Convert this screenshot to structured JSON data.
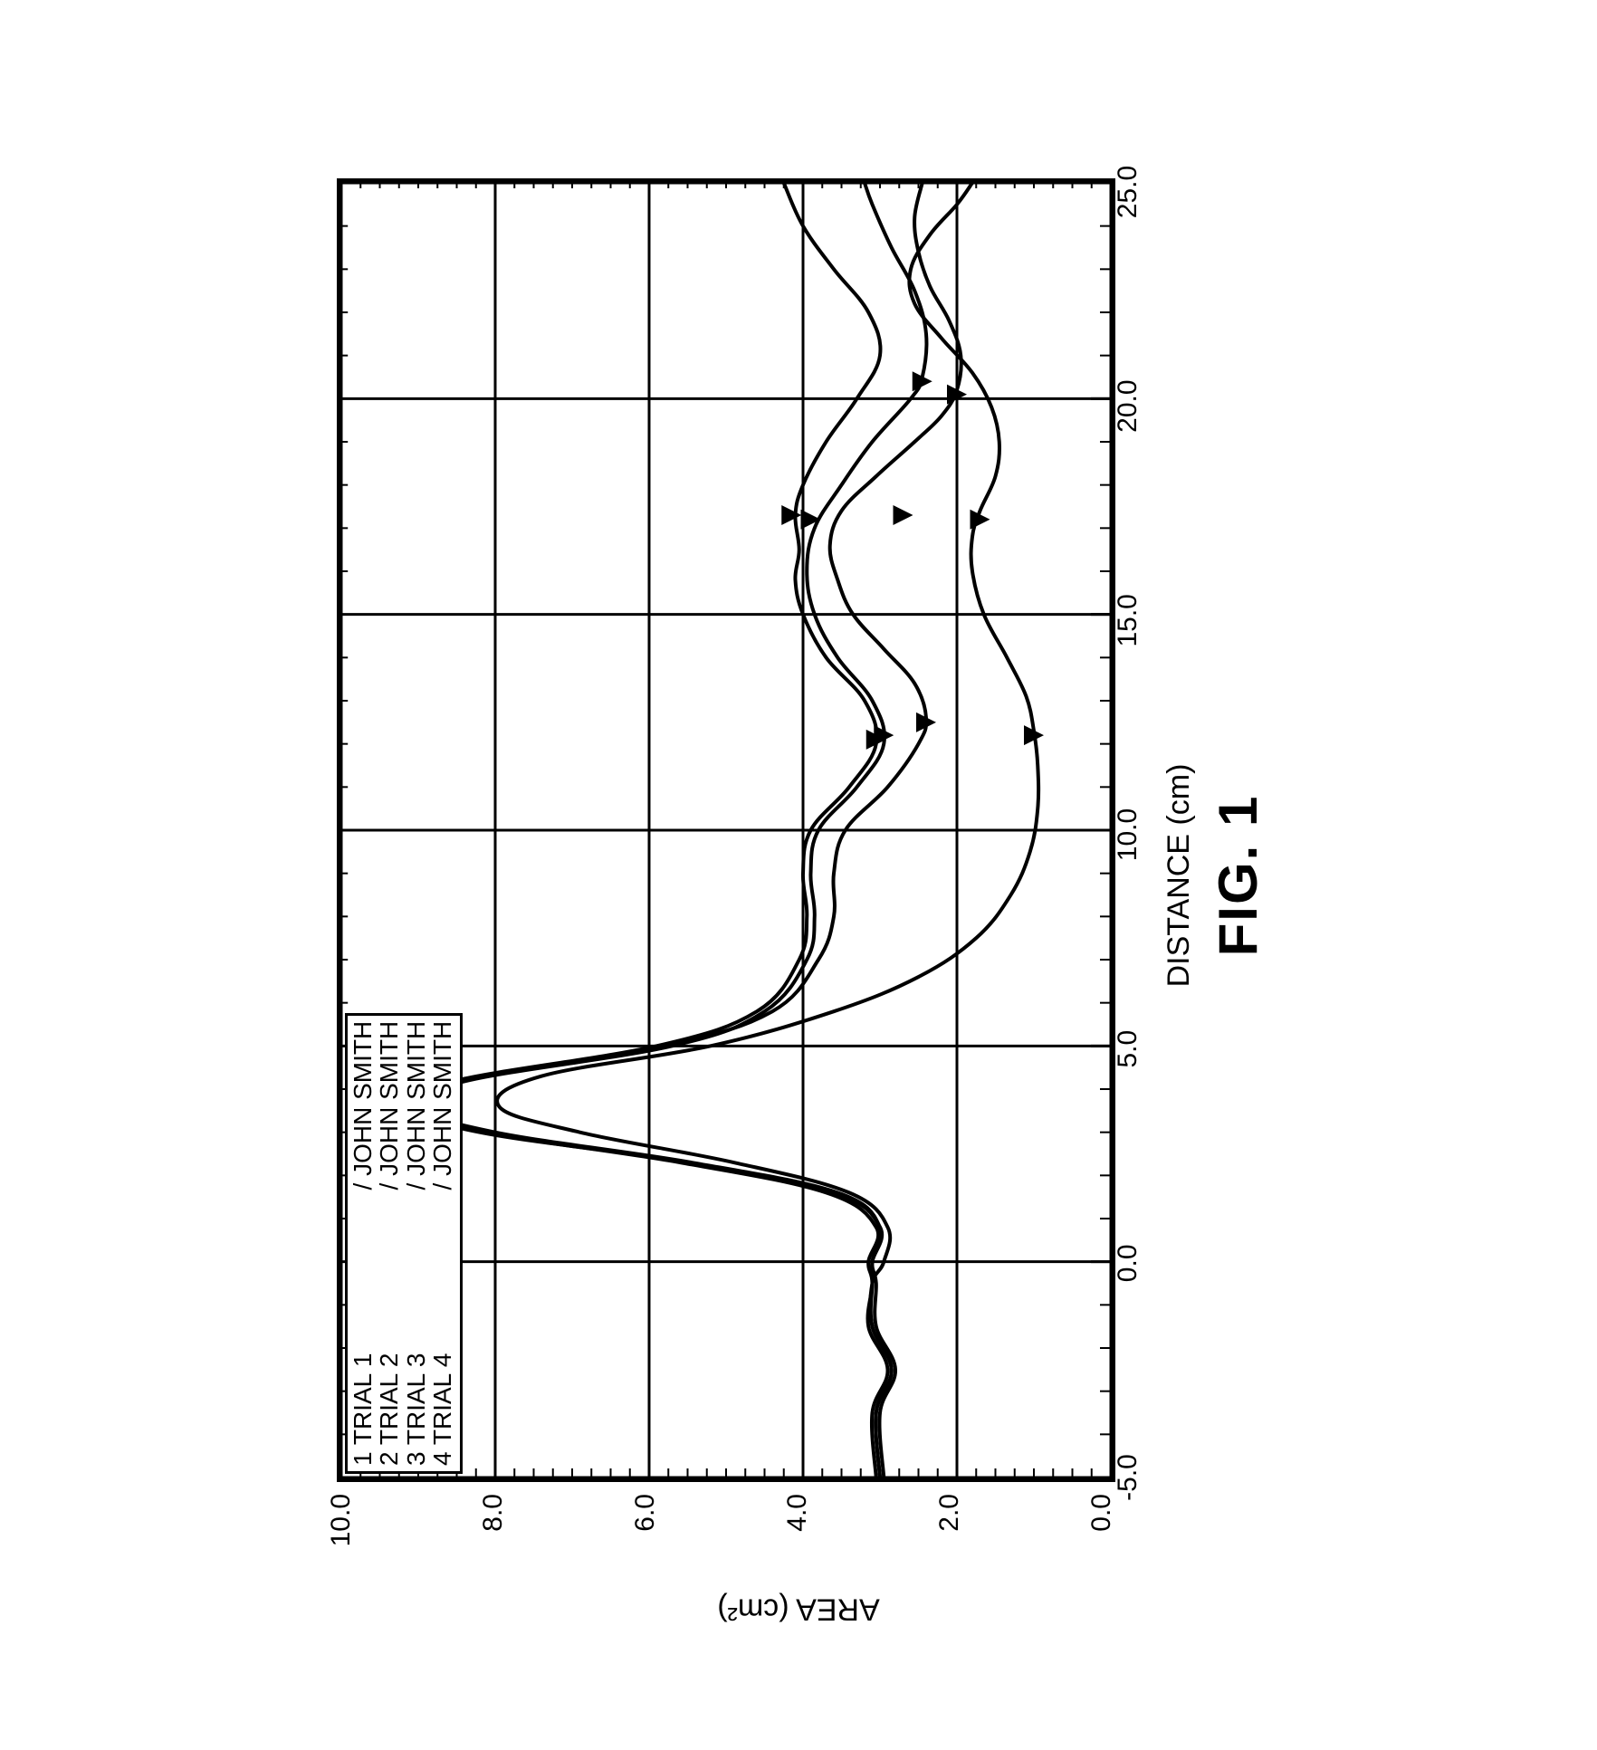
{
  "figure_caption": "FIG. 1",
  "x_axis_label": "DISTANCE (cm)",
  "y_axis_label": "AREA (cm²)",
  "legend": {
    "rows": [
      {
        "left": "1 TRIAL 1",
        "right": "/ JOHN SMITH"
      },
      {
        "left": "2 TRIAL 2",
        "right": "/ JOHN SMITH"
      },
      {
        "left": "3 TRIAL 3",
        "right": "/ JOHN SMITH"
      },
      {
        "left": "4 TRIAL 4",
        "right": "/ JOHN SMITH"
      }
    ]
  },
  "chart": {
    "type": "line",
    "xlim": [
      -5.0,
      25.0
    ],
    "ylim": [
      0.0,
      10.0
    ],
    "x_major_ticks": [
      -5.0,
      0.0,
      5.0,
      10.0,
      15.0,
      20.0,
      25.0
    ],
    "x_major_labels": [
      "-5.0",
      "0.0",
      "5.0",
      "10.0",
      "15.0",
      "20.0",
      "25.0"
    ],
    "x_minor_step": 1.0,
    "y_major_ticks": [
      0.0,
      2.0,
      4.0,
      6.0,
      8.0,
      10.0
    ],
    "y_major_labels": [
      "0.0",
      "2.0",
      "4.0",
      "6.0",
      "8.0",
      "10.0"
    ],
    "y_minor_step": 0.25,
    "grid_color": "#000000",
    "background_color": "#ffffff",
    "line_width": 4,
    "series": [
      {
        "name": "trial1",
        "points": [
          [
            -5.0,
            3.0
          ],
          [
            -3.5,
            3.05
          ],
          [
            -2.5,
            2.85
          ],
          [
            -1.5,
            3.1
          ],
          [
            -0.5,
            3.1
          ],
          [
            0.0,
            3.1
          ],
          [
            0.8,
            3.0
          ],
          [
            1.6,
            3.6
          ],
          [
            2.3,
            5.5
          ],
          [
            3.0,
            8.2
          ],
          [
            3.6,
            9.15
          ],
          [
            4.2,
            8.5
          ],
          [
            5.0,
            5.9
          ],
          [
            5.8,
            4.6
          ],
          [
            7.0,
            4.05
          ],
          [
            8.0,
            3.95
          ],
          [
            9.0,
            4.0
          ],
          [
            10.0,
            3.9
          ],
          [
            11.0,
            3.4
          ],
          [
            12.0,
            3.05
          ],
          [
            13.0,
            3.2
          ],
          [
            14.0,
            3.7
          ],
          [
            15.0,
            4.0
          ],
          [
            15.8,
            4.1
          ],
          [
            16.5,
            4.05
          ],
          [
            17.3,
            4.1
          ],
          [
            18.0,
            4.0
          ],
          [
            19.0,
            3.7
          ],
          [
            20.0,
            3.3
          ],
          [
            21.0,
            3.0
          ],
          [
            22.0,
            3.15
          ],
          [
            23.0,
            3.6
          ],
          [
            24.0,
            4.0
          ],
          [
            25.0,
            4.25
          ]
        ],
        "markers": [
          [
            12.1,
            3.05
          ],
          [
            17.3,
            4.15
          ]
        ]
      },
      {
        "name": "trial2",
        "points": [
          [
            -5.0,
            3.05
          ],
          [
            -3.5,
            3.1
          ],
          [
            -2.5,
            2.9
          ],
          [
            -1.5,
            3.15
          ],
          [
            -0.5,
            3.1
          ],
          [
            0.0,
            3.15
          ],
          [
            0.8,
            3.05
          ],
          [
            1.6,
            3.7
          ],
          [
            2.3,
            5.6
          ],
          [
            3.0,
            8.1
          ],
          [
            3.6,
            9.05
          ],
          [
            4.2,
            8.35
          ],
          [
            5.0,
            5.7
          ],
          [
            5.8,
            4.5
          ],
          [
            7.0,
            3.95
          ],
          [
            8.0,
            3.85
          ],
          [
            9.0,
            3.9
          ],
          [
            10.0,
            3.8
          ],
          [
            11.0,
            3.3
          ],
          [
            12.0,
            2.95
          ],
          [
            13.0,
            3.1
          ],
          [
            14.0,
            3.55
          ],
          [
            15.0,
            3.85
          ],
          [
            16.0,
            3.95
          ],
          [
            17.0,
            3.85
          ],
          [
            18.0,
            3.5
          ],
          [
            19.0,
            3.1
          ],
          [
            20.0,
            2.6
          ],
          [
            20.5,
            2.45
          ],
          [
            21.5,
            2.4
          ],
          [
            22.5,
            2.55
          ],
          [
            23.5,
            2.85
          ],
          [
            24.5,
            3.1
          ],
          [
            25.0,
            3.2
          ]
        ],
        "markers": [
          [
            12.2,
            2.95
          ],
          [
            17.2,
            3.9
          ],
          [
            20.4,
            2.45
          ]
        ]
      },
      {
        "name": "trial3",
        "points": [
          [
            -5.0,
            2.95
          ],
          [
            -3.5,
            3.0
          ],
          [
            -2.5,
            2.8
          ],
          [
            -1.5,
            3.05
          ],
          [
            -0.5,
            3.05
          ],
          [
            0.0,
            3.1
          ],
          [
            0.8,
            3.0
          ],
          [
            1.6,
            3.55
          ],
          [
            2.3,
            5.45
          ],
          [
            3.0,
            8.0
          ],
          [
            3.6,
            9.0
          ],
          [
            4.2,
            8.4
          ],
          [
            5.0,
            5.8
          ],
          [
            5.8,
            4.4
          ],
          [
            7.0,
            3.8
          ],
          [
            8.0,
            3.6
          ],
          [
            9.0,
            3.6
          ],
          [
            10.0,
            3.45
          ],
          [
            11.0,
            2.9
          ],
          [
            12.0,
            2.5
          ],
          [
            12.6,
            2.4
          ],
          [
            13.4,
            2.55
          ],
          [
            14.2,
            2.95
          ],
          [
            15.0,
            3.35
          ],
          [
            15.8,
            3.55
          ],
          [
            16.6,
            3.65
          ],
          [
            17.4,
            3.5
          ],
          [
            18.2,
            3.05
          ],
          [
            19.0,
            2.55
          ],
          [
            19.6,
            2.2
          ],
          [
            20.2,
            2.0
          ],
          [
            21.0,
            1.95
          ],
          [
            21.8,
            2.1
          ],
          [
            22.6,
            2.35
          ],
          [
            23.4,
            2.5
          ],
          [
            24.2,
            2.55
          ],
          [
            25.0,
            2.45
          ]
        ],
        "markers": [
          [
            12.5,
            2.4
          ],
          [
            17.3,
            2.7
          ],
          [
            20.1,
            2.0
          ]
        ]
      },
      {
        "name": "trial4",
        "points": [
          [
            -5.0,
            3.0
          ],
          [
            -3.5,
            3.05
          ],
          [
            -2.5,
            2.85
          ],
          [
            -1.5,
            3.1
          ],
          [
            -0.5,
            3.1
          ],
          [
            0.0,
            2.95
          ],
          [
            0.8,
            2.9
          ],
          [
            1.6,
            3.4
          ],
          [
            2.3,
            4.9
          ],
          [
            3.0,
            6.9
          ],
          [
            3.6,
            7.95
          ],
          [
            4.3,
            7.4
          ],
          [
            5.0,
            5.2
          ],
          [
            5.8,
            3.6
          ],
          [
            6.6,
            2.5
          ],
          [
            7.5,
            1.75
          ],
          [
            8.5,
            1.3
          ],
          [
            9.5,
            1.05
          ],
          [
            10.5,
            0.95
          ],
          [
            11.5,
            0.95
          ],
          [
            12.3,
            1.0
          ],
          [
            13.1,
            1.1
          ],
          [
            14.0,
            1.35
          ],
          [
            15.0,
            1.65
          ],
          [
            16.0,
            1.8
          ],
          [
            16.8,
            1.8
          ],
          [
            17.4,
            1.7
          ],
          [
            18.2,
            1.5
          ],
          [
            19.0,
            1.45
          ],
          [
            19.8,
            1.55
          ],
          [
            20.6,
            1.8
          ],
          [
            21.4,
            2.2
          ],
          [
            22.2,
            2.55
          ],
          [
            23.0,
            2.6
          ],
          [
            23.8,
            2.35
          ],
          [
            24.5,
            2.0
          ],
          [
            25.0,
            1.8
          ]
        ],
        "markers": [
          [
            12.2,
            1.0
          ],
          [
            17.2,
            1.7
          ]
        ]
      }
    ]
  },
  "colors": {
    "stroke": "#000000",
    "background": "#ffffff"
  },
  "typography": {
    "axis_label_fontsize": 34,
    "tick_label_fontsize": 30,
    "caption_fontsize": 60,
    "legend_fontsize": 28,
    "font_family": "Arial"
  }
}
